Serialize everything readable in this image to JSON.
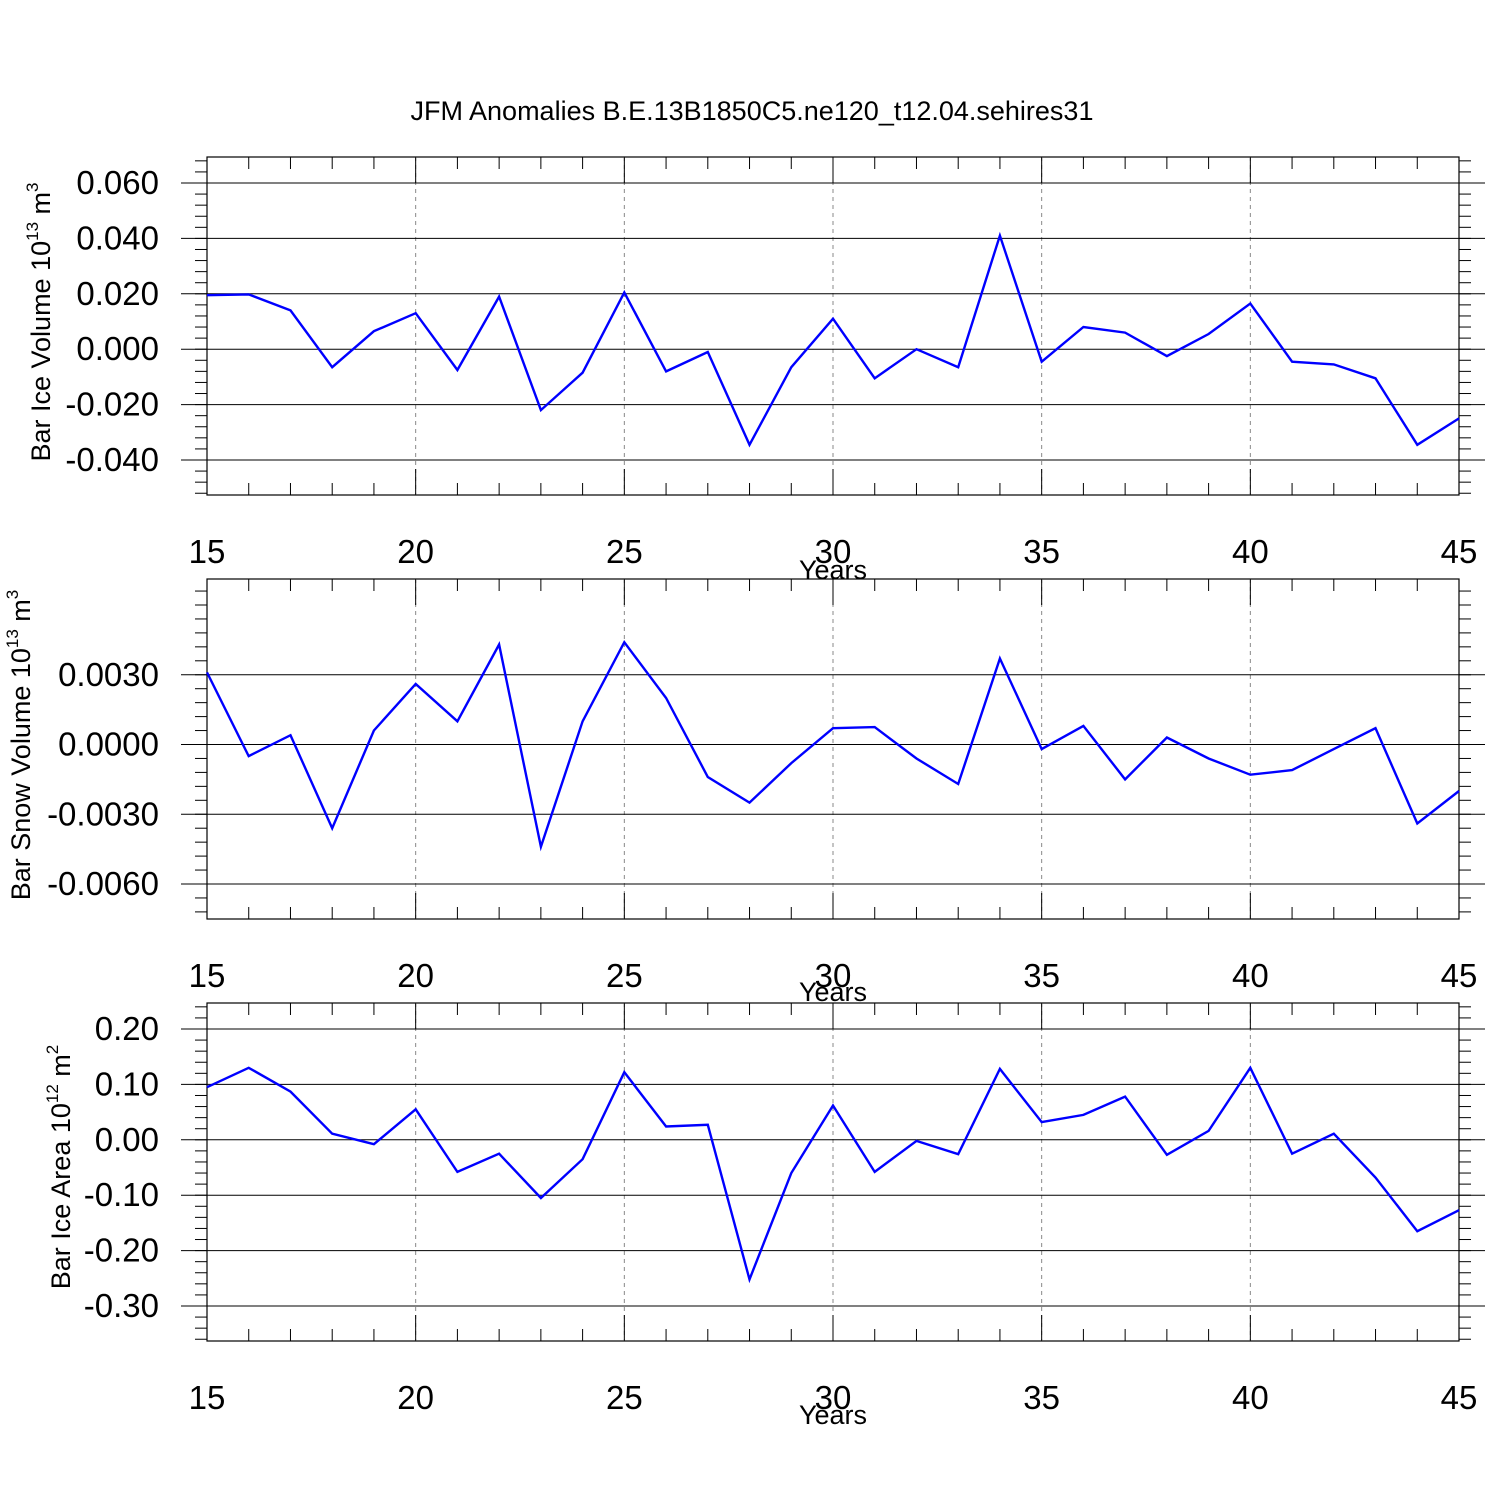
{
  "title": "JFM Anomalies B.E.13B1850C5.ne120_t12.04.sehires31",
  "line_color": "#0000ff",
  "chart_data": [
    {
      "type": "line",
      "ylabel": {
        "text": "Bar Ice Volume 10",
        "exp": "13",
        "unit": " m",
        "unit_exp": "3"
      },
      "xlabel": "Years",
      "xlim": [
        15,
        45
      ],
      "ylim": [
        -0.04,
        0.06
      ],
      "x_ticks": [
        15,
        20,
        25,
        30,
        35,
        40,
        45
      ],
      "x_tick_labels": [
        "15",
        "20",
        "25",
        "30",
        "35",
        "40",
        "45"
      ],
      "y_ticks": [
        -0.04,
        -0.02,
        0.0,
        0.02,
        0.04,
        0.06
      ],
      "y_tick_labels": [
        "-0.040",
        "-0.020",
        "0.000",
        "0.020",
        "0.040",
        "0.060"
      ],
      "x": [
        15,
        16,
        17,
        18,
        19,
        20,
        21,
        22,
        23,
        24,
        25,
        26,
        27,
        28,
        29,
        30,
        31,
        32,
        33,
        34,
        35,
        36,
        37,
        38,
        39,
        40,
        41,
        42,
        43,
        44,
        45
      ],
      "y": [
        0.0195,
        0.0198,
        0.014,
        -0.0065,
        0.0065,
        0.013,
        -0.0075,
        0.019,
        -0.022,
        -0.0085,
        0.0205,
        -0.008,
        -0.001,
        -0.0345,
        -0.0065,
        0.011,
        -0.0105,
        0.0,
        -0.0065,
        0.041,
        -0.0045,
        0.008,
        0.006,
        -0.0025,
        0.0055,
        0.0165,
        -0.0045,
        -0.0055,
        -0.0105,
        -0.0345,
        -0.025
      ]
    },
    {
      "type": "line",
      "ylabel": {
        "text": "Bar Snow Volume 10",
        "exp": "13",
        "unit": " m",
        "unit_exp": "3"
      },
      "xlabel": "Years",
      "xlim": [
        15,
        45
      ],
      "ylim": [
        -0.006,
        0.006
      ],
      "x_ticks": [
        15,
        20,
        25,
        30,
        35,
        40,
        45
      ],
      "x_tick_labels": [
        "15",
        "20",
        "25",
        "30",
        "35",
        "40",
        "45"
      ],
      "y_ticks": [
        -0.006,
        -0.003,
        0.0,
        0.003
      ],
      "y_tick_labels": [
        "-0.0060",
        "-0.0030",
        "0.0000",
        "0.0030"
      ],
      "x": [
        15,
        16,
        17,
        18,
        19,
        20,
        21,
        22,
        23,
        24,
        25,
        26,
        27,
        28,
        29,
        30,
        31,
        32,
        33,
        34,
        35,
        36,
        37,
        38,
        39,
        40,
        41,
        42,
        43,
        44,
        45
      ],
      "y": [
        0.0031,
        -0.0005,
        0.0004,
        -0.0036,
        0.0006,
        0.0026,
        0.001,
        0.0043,
        -0.0044,
        0.001,
        0.0044,
        0.002,
        -0.0014,
        -0.0025,
        -0.0008,
        0.0007,
        0.00075,
        -0.0006,
        -0.0017,
        0.0037,
        -0.0002,
        0.0008,
        -0.0015,
        0.0003,
        -0.0006,
        -0.0013,
        -0.0011,
        -0.0002,
        0.0007,
        -0.0034,
        -0.002
      ]
    },
    {
      "type": "line",
      "ylabel": {
        "text": "Bar Ice Area 10",
        "exp": "12",
        "unit": " m",
        "unit_exp": "2"
      },
      "xlabel": "Years",
      "xlim": [
        15,
        45
      ],
      "ylim": [
        -0.3,
        0.2
      ],
      "x_ticks": [
        15,
        20,
        25,
        30,
        35,
        40,
        45
      ],
      "x_tick_labels": [
        "15",
        "20",
        "25",
        "30",
        "35",
        "40",
        "45"
      ],
      "y_ticks": [
        -0.3,
        -0.2,
        -0.1,
        0.0,
        0.1,
        0.2
      ],
      "y_tick_labels": [
        "-0.30",
        "-0.20",
        "-0.10",
        "0.00",
        "0.10",
        "0.20"
      ],
      "x": [
        15,
        16,
        17,
        18,
        19,
        20,
        21,
        22,
        23,
        24,
        25,
        26,
        27,
        28,
        29,
        30,
        31,
        32,
        33,
        34,
        35,
        36,
        37,
        38,
        39,
        40,
        41,
        42,
        43,
        44,
        45
      ],
      "y": [
        0.095,
        0.13,
        0.087,
        0.011,
        -0.008,
        0.055,
        -0.058,
        -0.025,
        -0.105,
        -0.035,
        0.122,
        0.024,
        0.027,
        -0.252,
        -0.06,
        0.062,
        -0.058,
        -0.002,
        -0.026,
        0.128,
        0.032,
        0.045,
        0.078,
        -0.027,
        0.016,
        0.13,
        -0.025,
        0.011,
        -0.068,
        -0.165,
        -0.127
      ]
    }
  ]
}
